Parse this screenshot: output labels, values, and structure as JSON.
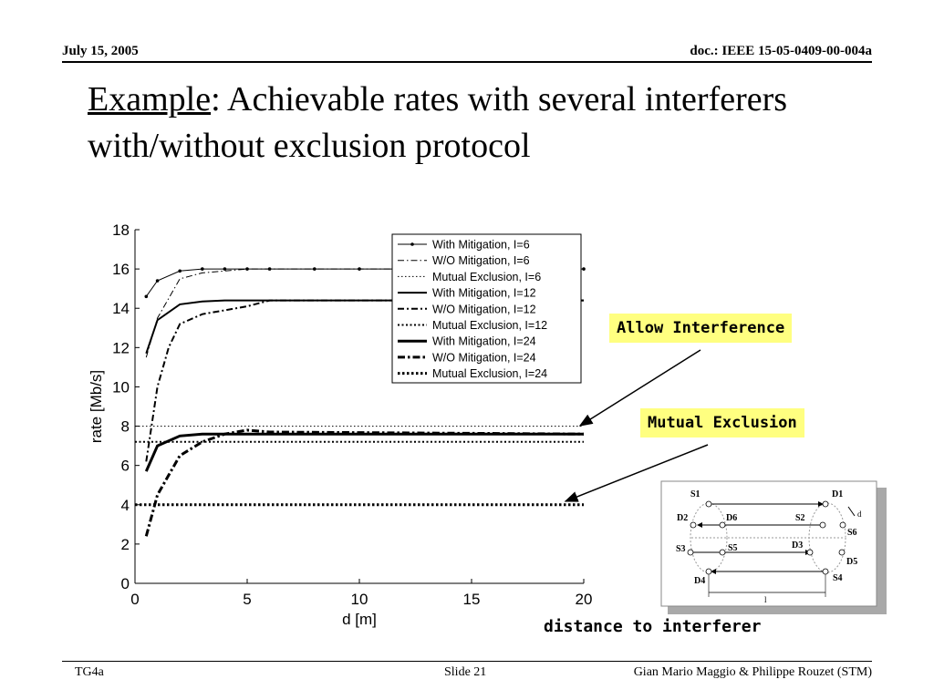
{
  "header": {
    "date": "July 15, 2005",
    "doc": "doc.: IEEE 15-05-0409-00-004a"
  },
  "title": {
    "underlined": "Example",
    "rest": ": Achievable rates with several interferers with/without exclusion protocol"
  },
  "callouts": {
    "allow": "Allow Interference",
    "mutual": "Mutual Exclusion"
  },
  "x_caption": "distance to interferer",
  "footer": {
    "left": "TG4a",
    "center": "Slide 21",
    "right": "Gian Mario Maggio & Philippe Rouzet (STM)"
  },
  "diagram": {
    "nodes": [
      "S1",
      "D1",
      "D2",
      "D6",
      "S2",
      "S6",
      "S3",
      "S5",
      "D3",
      "D5",
      "D4",
      "S4"
    ],
    "dim_d": "d",
    "dim_l": "l"
  },
  "chart_data": {
    "type": "line",
    "xlabel": "d [m]",
    "ylabel": "rate [Mb/s]",
    "xlim": [
      0,
      20
    ],
    "ylim": [
      0,
      18
    ],
    "xticks": [
      0,
      5,
      10,
      15,
      20
    ],
    "yticks": [
      0,
      2,
      4,
      6,
      8,
      10,
      12,
      14,
      16,
      18
    ],
    "grid": false,
    "legend": "top-right",
    "series": [
      {
        "name": "With Mitigation, I=6",
        "style": "thin-solid-dot",
        "x": [
          0.5,
          1,
          2,
          3,
          4,
          5,
          6,
          8,
          10,
          20
        ],
        "y": [
          14.6,
          15.4,
          15.9,
          16.0,
          16.0,
          16.0,
          16.0,
          16.0,
          16.0,
          16.0
        ]
      },
      {
        "name": "W/O Mitigation, I=6",
        "style": "thin-dashdot",
        "x": [
          0.5,
          1,
          2,
          3,
          4,
          5,
          6,
          20
        ],
        "y": [
          11.5,
          13.5,
          15.5,
          15.8,
          15.9,
          16.0,
          16.0,
          16.0
        ]
      },
      {
        "name": "Mutual Exclusion, I=6",
        "style": "thin-dotted",
        "x": [
          0,
          20
        ],
        "y": [
          8.0,
          8.0
        ]
      },
      {
        "name": "With Mitigation, I=12",
        "style": "medium-solid",
        "x": [
          0.5,
          1,
          2,
          3,
          4,
          5,
          6,
          20
        ],
        "y": [
          11.7,
          13.4,
          14.2,
          14.35,
          14.4,
          14.4,
          14.4,
          14.4
        ]
      },
      {
        "name": "W/O Mitigation, I=12",
        "style": "medium-dashdot",
        "x": [
          0.5,
          1,
          1.5,
          2,
          3,
          4,
          5,
          6,
          20
        ],
        "y": [
          6.2,
          10.0,
          12.0,
          13.2,
          13.7,
          13.9,
          14.1,
          14.4,
          14.4
        ]
      },
      {
        "name": "Mutual Exclusion, I=12",
        "style": "medium-dotted",
        "x": [
          0,
          20
        ],
        "y": [
          7.2,
          7.2
        ]
      },
      {
        "name": "With Mitigation, I=24",
        "style": "thick-solid",
        "x": [
          0.5,
          1,
          2,
          3,
          4,
          5,
          6,
          20
        ],
        "y": [
          5.7,
          7.0,
          7.5,
          7.6,
          7.6,
          7.6,
          7.6,
          7.6
        ]
      },
      {
        "name": "W/O Mitigation, I=24",
        "style": "thick-dashdot",
        "x": [
          0.5,
          1,
          1.5,
          2,
          3,
          4,
          5,
          6,
          20
        ],
        "y": [
          2.4,
          4.5,
          5.5,
          6.5,
          7.2,
          7.6,
          7.8,
          7.7,
          7.6
        ]
      },
      {
        "name": "Mutual Exclusion, I=24",
        "style": "thick-dotted",
        "x": [
          0,
          20
        ],
        "y": [
          4.0,
          4.0
        ]
      }
    ]
  }
}
